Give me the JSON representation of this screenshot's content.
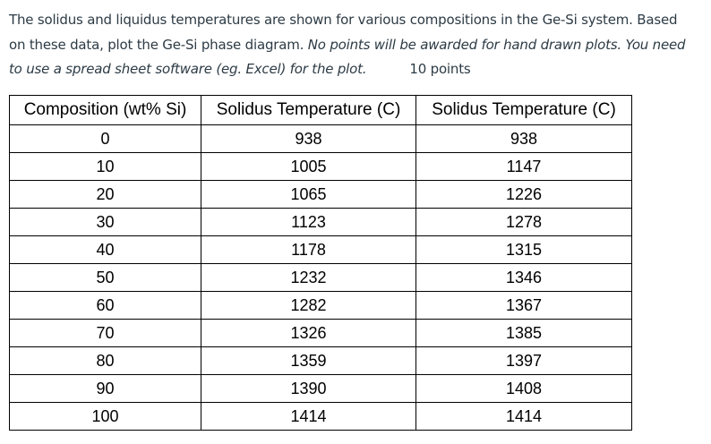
{
  "paragraph": {
    "line1": "The solidus and liquidus temperatures are shown for various compositions in the Ge-Si system.  Based",
    "line2": "on these data, plot the Ge-Si phase diagram.",
    "line2_italic": "No points will be awarded for hand drawn plots.  You need",
    "line3_italic": "to use a spread sheet software (eg. Excel) for the plot.",
    "points": "10 points"
  },
  "table": {
    "header": [
      "Composition (wt% Si)",
      "Solidus Temperature (C)",
      "Solidus Temperature (C)"
    ],
    "rows": [
      [
        0,
        938,
        938
      ],
      [
        10,
        1005,
        1147
      ],
      [
        20,
        1065,
        1226
      ],
      [
        30,
        1123,
        1278
      ],
      [
        40,
        1178,
        1315
      ],
      [
        50,
        1232,
        1346
      ],
      [
        60,
        1282,
        1367
      ],
      [
        70,
        1326,
        1385
      ],
      [
        80,
        1359,
        1397
      ],
      [
        90,
        1390,
        1408
      ],
      [
        100,
        1414,
        1414
      ]
    ]
  }
}
